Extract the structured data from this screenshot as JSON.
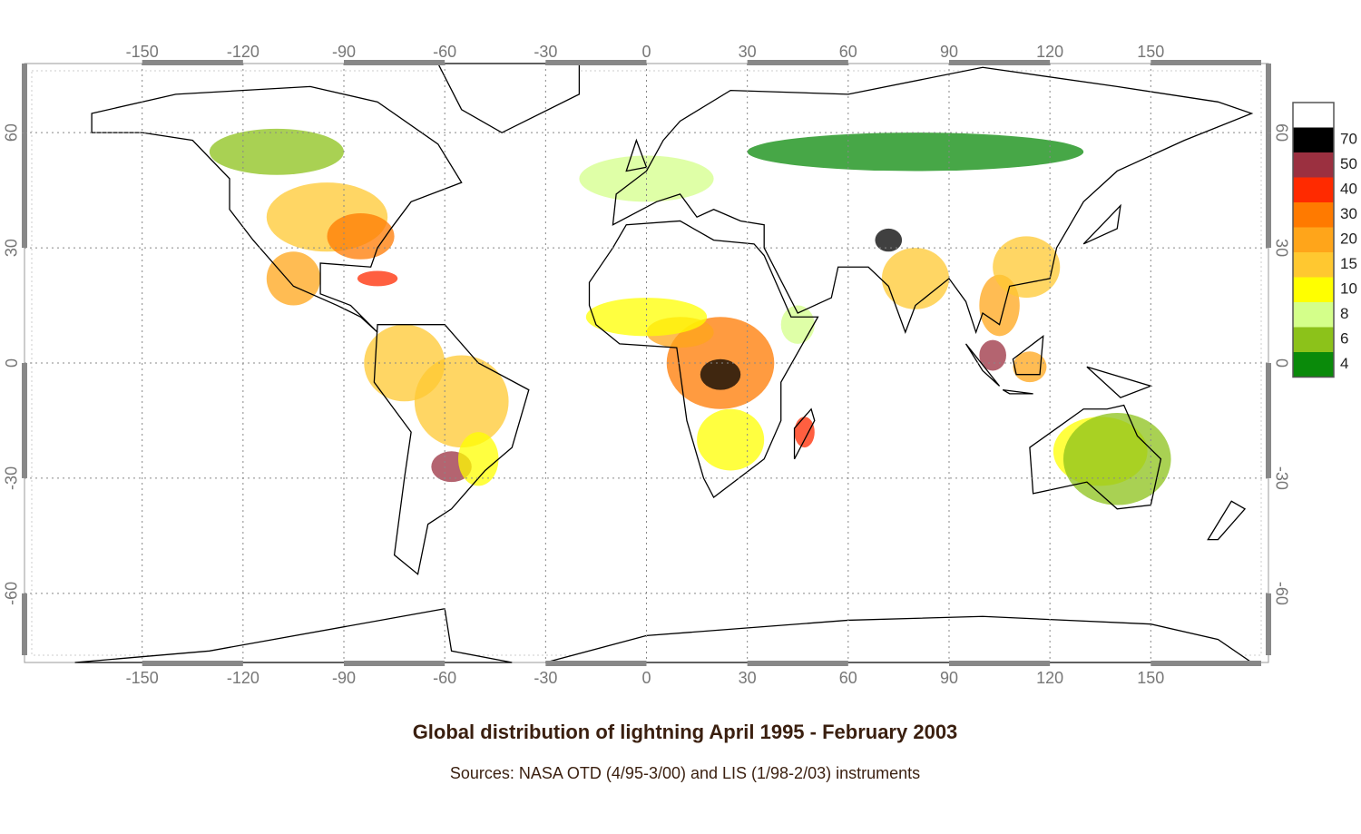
{
  "map": {
    "xlim": [
      -185,
      185
    ],
    "ylim": [
      -78,
      78
    ],
    "lon_ticks": [
      -150,
      -120,
      -90,
      -60,
      -30,
      0,
      30,
      60,
      90,
      120,
      150
    ],
    "lat_ticks": [
      60,
      30,
      0,
      -30,
      -60
    ],
    "grid": true
  },
  "legend": {
    "top_color": "#ffffff",
    "levels": [
      {
        "label": 70,
        "color": "#000000"
      },
      {
        "label": 50,
        "color": "#9b3040"
      },
      {
        "label": 40,
        "color": "#ff2a00"
      },
      {
        "label": 30,
        "color": "#ff7a00"
      },
      {
        "label": 20,
        "color": "#ffa51a"
      },
      {
        "label": 15,
        "color": "#ffc830"
      },
      {
        "label": 10,
        "color": "#ffff00"
      },
      {
        "label": 8,
        "color": "#d4ff8a"
      },
      {
        "label": 6,
        "color": "#8cc21a"
      },
      {
        "label": 4,
        "color": "#0a8a0a"
      }
    ]
  },
  "title": "Global distribution of lightning April 1995 - February 2003",
  "subtitle": "Sources: NASA OTD (4/95-3/00) and LIS (1/98-2/03) instruments"
}
